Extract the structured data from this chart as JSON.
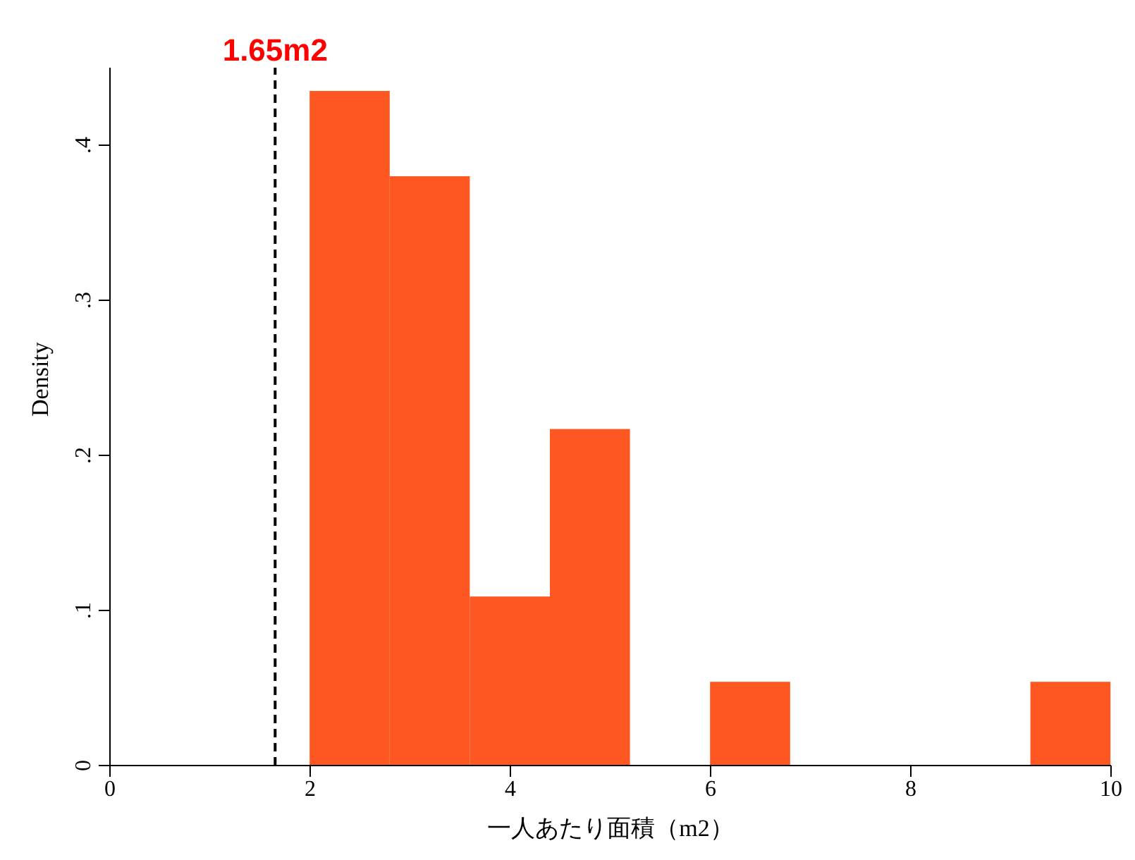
{
  "chart_data": {
    "type": "histogram",
    "xlabel": "一人あたり面積（m2）",
    "ylabel": "Density",
    "bins": [
      2,
      2.8,
      3.6,
      4.4,
      5.2,
      6,
      6.8,
      7.6,
      8.4,
      9.2,
      10
    ],
    "values": [
      0.435,
      0.38,
      0.109,
      0.217,
      0,
      0.054,
      0,
      0,
      0,
      0.054
    ],
    "color": "#ff5722",
    "xlim": [
      0,
      10
    ],
    "xticks": [
      0,
      2,
      4,
      6,
      8,
      10
    ],
    "ylim": [
      0,
      0.45
    ],
    "yticks": [
      {
        "value": 0,
        "label": "0"
      },
      {
        "value": 0.1,
        "label": ".1"
      },
      {
        "value": 0.2,
        "label": ".2"
      },
      {
        "value": 0.3,
        "label": ".3"
      },
      {
        "value": 0.4,
        "label": ".4"
      }
    ],
    "ref_lines": [
      {
        "axis": "x",
        "value": 1.65,
        "label": "1.65m2",
        "line_style": "dashed"
      }
    ],
    "grid": false
  }
}
